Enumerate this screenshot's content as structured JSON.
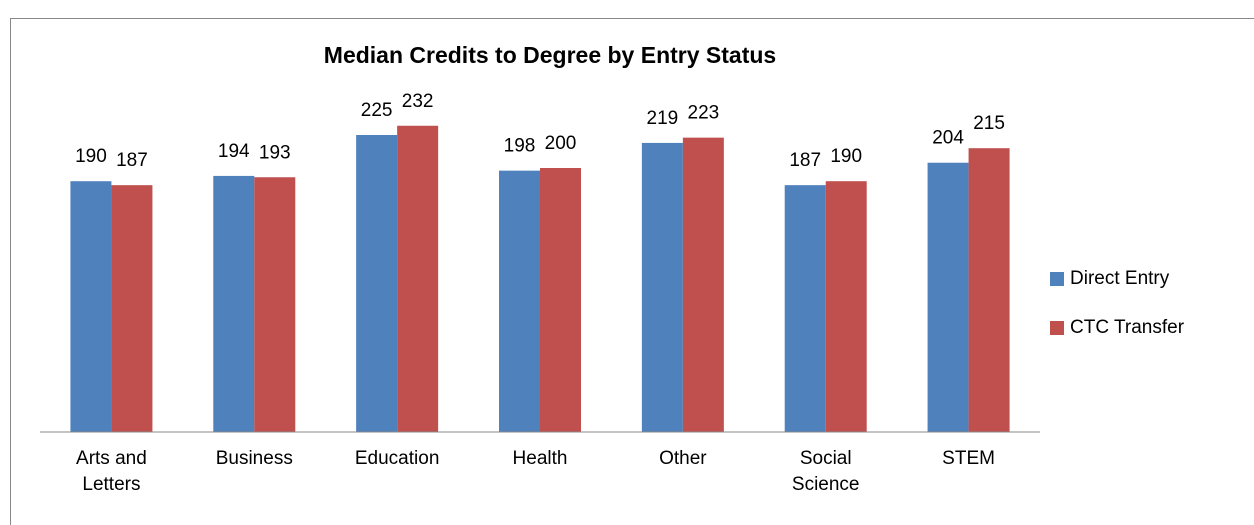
{
  "chart_data": {
    "type": "bar",
    "title": "Median Credits to Degree by Entry Status",
    "categories": [
      "Arts and Letters",
      "Business",
      "Education",
      "Health",
      "Other",
      "Social Science",
      "STEM"
    ],
    "series": [
      {
        "name": "Direct Entry",
        "color": "#4f81bd",
        "values": [
          190,
          194,
          225,
          198,
          219,
          187,
          204
        ]
      },
      {
        "name": "CTC Transfer",
        "color": "#c0504d",
        "values": [
          187,
          193,
          232,
          200,
          223,
          190,
          215
        ]
      }
    ],
    "ylim": [
      0,
      250
    ],
    "legend": "right"
  }
}
